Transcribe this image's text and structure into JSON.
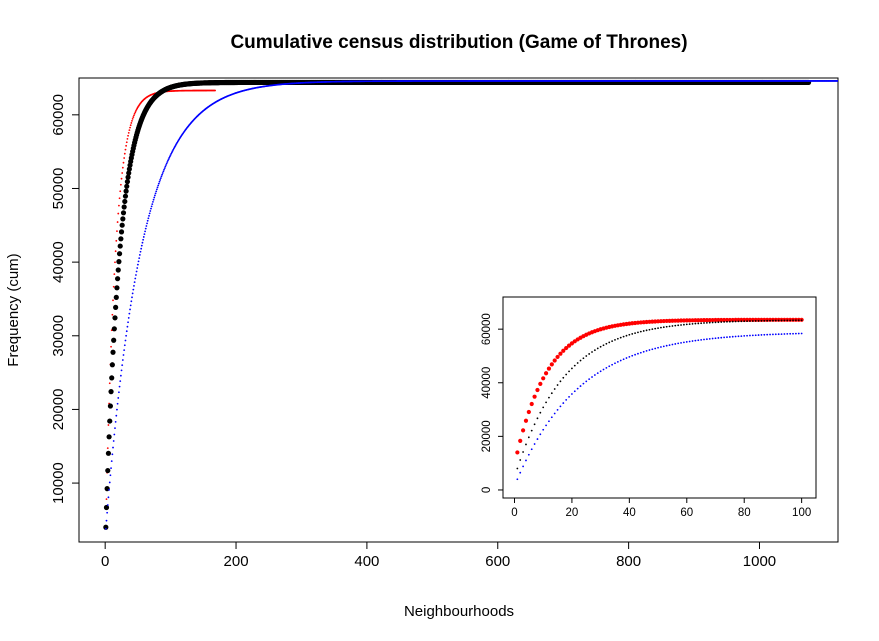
{
  "colors": {
    "red": "#ff0000",
    "black": "#000000",
    "blue": "#0000ff",
    "background": "#ffffff"
  },
  "chart_data": [
    {
      "type": "scatter",
      "title": "Cumulative census distribution (Game of Thrones)",
      "xlabel": "Neighbourhoods",
      "ylabel": "Frequency (cum)",
      "xlim": [
        -40,
        1120
      ],
      "ylim": [
        2000,
        65000
      ],
      "xticks": [
        0,
        200,
        400,
        600,
        800,
        1000
      ],
      "yticks": [
        10000,
        20000,
        30000,
        40000,
        50000,
        60000
      ],
      "grid": false,
      "series": [
        {
          "color": "red",
          "marker_size": "small",
          "curve": {
            "k": 15,
            "x_end": 168,
            "y_start": 4000,
            "y_end": 63300
          }
        },
        {
          "color": "black",
          "marker_size": "large",
          "curve": {
            "k": 22,
            "x_end": 1075,
            "y_start": 4000,
            "y_end": 64400
          }
        },
        {
          "color": "blue",
          "marker_size": "small",
          "curve": {
            "k": 55,
            "x_end": 1120,
            "y_start": 3800,
            "y_end": 64600
          }
        }
      ]
    },
    {
      "type": "scatter",
      "title": "",
      "xlabel": "",
      "ylabel": "",
      "xlim": [
        -4,
        105
      ],
      "ylim": [
        -3000,
        72000
      ],
      "xticks": [
        0,
        20,
        40,
        60,
        80,
        100
      ],
      "yticks": [
        0,
        20000,
        40000,
        60000
      ],
      "grid": false,
      "series": [
        {
          "color": "red",
          "marker_size": "medium",
          "curve": {
            "k": 11,
            "x_end": 100,
            "y_start": 14000,
            "y_end": 63500
          }
        },
        {
          "color": "black",
          "marker_size": "small",
          "curve": {
            "k": 17,
            "x_end": 100,
            "y_start": 8000,
            "y_end": 63500
          }
        },
        {
          "color": "blue",
          "marker_size": "small",
          "curve": {
            "k": 22,
            "x_end": 100,
            "y_start": 4000,
            "y_end": 59000
          }
        }
      ]
    }
  ]
}
